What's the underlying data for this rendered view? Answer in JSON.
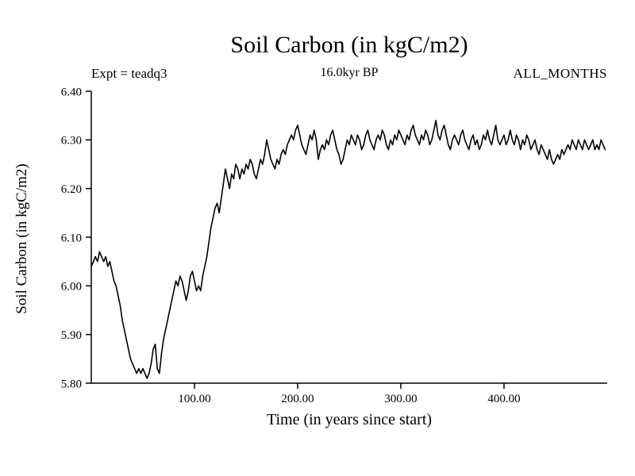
{
  "title": "Soil Carbon (in kgC/m2)",
  "annotations": {
    "experiment": "Expt = teadq3",
    "epoch": "16.0kyr BP",
    "months": "ALL_MONTHS"
  },
  "chart_data": {
    "type": "line",
    "title": "Soil Carbon (in kgC/m2)",
    "xlabel": "Time (in years since start)",
    "ylabel": "Soil Carbon (in kgC/m2)",
    "xlim": [
      0,
      500
    ],
    "ylim": [
      5.8,
      6.4
    ],
    "x_ticks": [
      100,
      200,
      300,
      400
    ],
    "x_tick_labels": [
      "100.00",
      "200.00",
      "300.00",
      "400.00"
    ],
    "y_ticks": [
      5.8,
      5.9,
      6.0,
      6.1,
      6.2,
      6.3,
      6.4
    ],
    "y_tick_labels": [
      "5.80",
      "5.90",
      "6.00",
      "6.10",
      "6.20",
      "6.30",
      "6.40"
    ],
    "grid": false,
    "legend": "none",
    "line_color": "#000000",
    "x_start": 0,
    "x_step": 2,
    "y": [
      6.04,
      6.05,
      6.06,
      6.05,
      6.07,
      6.06,
      6.05,
      6.06,
      6.04,
      6.05,
      6.03,
      6.01,
      6.0,
      5.98,
      5.96,
      5.93,
      5.91,
      5.89,
      5.87,
      5.85,
      5.84,
      5.83,
      5.82,
      5.83,
      5.82,
      5.83,
      5.82,
      5.81,
      5.82,
      5.84,
      5.87,
      5.88,
      5.83,
      5.82,
      5.86,
      5.89,
      5.91,
      5.93,
      5.95,
      5.97,
      5.99,
      6.01,
      6.0,
      6.02,
      6.01,
      5.99,
      5.97,
      5.99,
      6.02,
      6.03,
      6.01,
      5.99,
      6.0,
      5.99,
      6.02,
      6.04,
      6.06,
      6.09,
      6.12,
      6.14,
      6.16,
      6.17,
      6.15,
      6.18,
      6.21,
      6.24,
      6.22,
      6.2,
      6.23,
      6.22,
      6.25,
      6.24,
      6.22,
      6.24,
      6.23,
      6.25,
      6.24,
      6.26,
      6.25,
      6.23,
      6.22,
      6.24,
      6.26,
      6.25,
      6.27,
      6.3,
      6.28,
      6.26,
      6.25,
      6.24,
      6.26,
      6.25,
      6.27,
      6.28,
      6.27,
      6.29,
      6.3,
      6.31,
      6.3,
      6.32,
      6.33,
      6.31,
      6.29,
      6.28,
      6.27,
      6.29,
      6.31,
      6.3,
      6.32,
      6.3,
      6.26,
      6.28,
      6.29,
      6.28,
      6.3,
      6.29,
      6.31,
      6.32,
      6.3,
      6.28,
      6.27,
      6.25,
      6.26,
      6.28,
      6.3,
      6.29,
      6.31,
      6.3,
      6.29,
      6.31,
      6.3,
      6.28,
      6.29,
      6.31,
      6.32,
      6.3,
      6.29,
      6.28,
      6.3,
      6.31,
      6.3,
      6.32,
      6.31,
      6.29,
      6.28,
      6.3,
      6.29,
      6.31,
      6.3,
      6.32,
      6.31,
      6.3,
      6.29,
      6.31,
      6.3,
      6.32,
      6.33,
      6.31,
      6.3,
      6.29,
      6.31,
      6.3,
      6.32,
      6.31,
      6.29,
      6.3,
      6.32,
      6.34,
      6.31,
      6.3,
      6.32,
      6.33,
      6.31,
      6.29,
      6.28,
      6.3,
      6.31,
      6.3,
      6.29,
      6.31,
      6.32,
      6.3,
      6.29,
      6.28,
      6.3,
      6.31,
      6.29,
      6.3,
      6.28,
      6.29,
      6.31,
      6.3,
      6.32,
      6.3,
      6.29,
      6.31,
      6.33,
      6.3,
      6.29,
      6.3,
      6.31,
      6.29,
      6.3,
      6.32,
      6.3,
      6.29,
      6.31,
      6.3,
      6.28,
      6.3,
      6.29,
      6.31,
      6.3,
      6.28,
      6.29,
      6.3,
      6.28,
      6.27,
      6.29,
      6.28,
      6.27,
      6.26,
      6.28,
      6.26,
      6.25,
      6.26,
      6.27,
      6.26,
      6.28,
      6.27,
      6.28,
      6.29,
      6.28,
      6.3,
      6.29,
      6.28,
      6.3,
      6.29,
      6.28,
      6.3,
      6.29,
      6.28,
      6.29,
      6.3,
      6.28,
      6.29,
      6.28,
      6.3,
      6.29,
      6.28
    ]
  }
}
